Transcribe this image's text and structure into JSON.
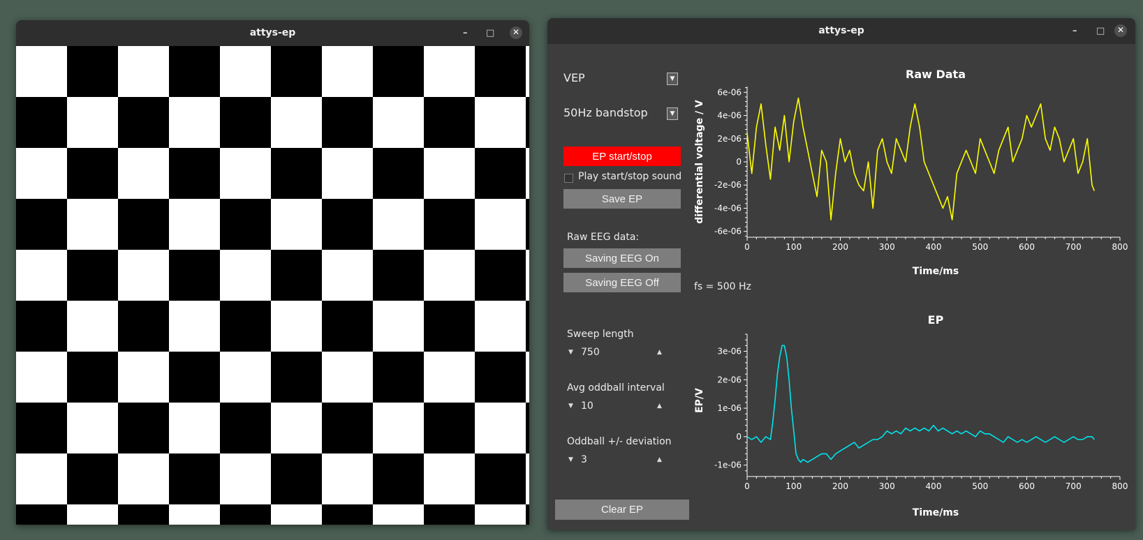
{
  "left_window": {
    "title": "attys-ep",
    "controls": {
      "minimize": "–",
      "maximize": "□",
      "close": "✕"
    }
  },
  "right_window": {
    "title": "attys-ep",
    "controls": {
      "minimize": "–",
      "maximize": "□",
      "close": "✕"
    }
  },
  "panel": {
    "mode_select": "VEP",
    "filter_select": "50Hz bandstop",
    "ep_button": "EP start/stop",
    "play_sound_label": "Play start/stop sound",
    "play_sound_checked": false,
    "save_ep_button": "Save EP",
    "raw_eeg_label": "Raw EEG data:",
    "saving_on_button": "Saving EEG On",
    "saving_off_button": "Saving EEG Off",
    "fs_label": "fs = 500 Hz",
    "sweep_length_label": "Sweep length",
    "sweep_length_value": "750",
    "avg_oddball_label": "Avg oddball interval",
    "avg_oddball_value": "10",
    "oddball_dev_label": "Oddball +/- deviation",
    "oddball_dev_value": "3",
    "clear_ep_button": "Clear EP"
  },
  "colors": {
    "raw_trace": "#ffff00",
    "ep_trace": "#00e5ee",
    "ep_button_bg": "#ff0000",
    "button_bg": "#7d7d7d",
    "panel_bg": "#3d3d3d"
  },
  "chart_data": [
    {
      "type": "line",
      "title": "Raw Data",
      "xlabel": "Time/ms",
      "ylabel": "differential voltage / V",
      "xlim": [
        0,
        800
      ],
      "ylim": [
        -6.5e-06,
        6.5e-06
      ],
      "xticks": [
        "0",
        "100",
        "200",
        "300",
        "400",
        "500",
        "600",
        "700",
        "800"
      ],
      "yticks": [
        "6e-06",
        "4e-06",
        "2e-06",
        "0",
        "-2e-06",
        "-4e-06",
        "-6e-06"
      ],
      "ytick_values": [
        6e-06,
        4e-06,
        2e-06,
        0,
        -2e-06,
        -4e-06,
        -6e-06
      ],
      "series": [
        {
          "x": [
            0,
            10,
            20,
            30,
            40,
            50,
            60,
            70,
            80,
            90,
            100,
            110,
            120,
            130,
            140,
            150,
            160,
            170,
            180,
            190,
            200,
            210,
            220,
            230,
            240,
            250,
            260,
            270,
            280,
            290,
            300,
            310,
            320,
            330,
            340,
            350,
            360,
            370,
            380,
            390,
            400,
            410,
            420,
            430,
            440,
            450,
            460,
            470,
            480,
            490,
            500,
            510,
            520,
            530,
            540,
            550,
            560,
            570,
            580,
            590,
            600,
            610,
            620,
            630,
            640,
            650,
            660,
            670,
            680,
            690,
            700,
            710,
            720,
            730,
            740,
            745
          ],
          "y": [
            2.5e-06,
            -1e-06,
            3e-06,
            5e-06,
            1.5e-06,
            -1.5e-06,
            3e-06,
            1e-06,
            4e-06,
            0,
            3.5e-06,
            5.5e-06,
            3e-06,
            1e-06,
            -1e-06,
            -3e-06,
            1e-06,
            0,
            -5e-06,
            -1e-06,
            2e-06,
            0,
            1e-06,
            -1e-06,
            -2e-06,
            -2.5e-06,
            0,
            -4e-06,
            1e-06,
            2e-06,
            0,
            -1e-06,
            2e-06,
            1e-06,
            0,
            3e-06,
            5e-06,
            3e-06,
            0,
            -1e-06,
            -2e-06,
            -3e-06,
            -4e-06,
            -3e-06,
            -5e-06,
            -1e-06,
            0,
            1e-06,
            0,
            -1e-06,
            2e-06,
            1e-06,
            0,
            -1e-06,
            1e-06,
            2e-06,
            3e-06,
            0,
            1e-06,
            2e-06,
            4e-06,
            3e-06,
            4e-06,
            5e-06,
            2e-06,
            1e-06,
            3e-06,
            2e-06,
            0,
            1e-06,
            2e-06,
            -1e-06,
            0,
            2e-06,
            -2e-06,
            -2.5e-06
          ]
        }
      ]
    },
    {
      "type": "line",
      "title": "EP",
      "xlabel": "Time/ms",
      "ylabel": "EP/V",
      "xlim": [
        0,
        800
      ],
      "ylim": [
        -1.4e-06,
        3.6e-06
      ],
      "xticks": [
        "0",
        "100",
        "200",
        "300",
        "400",
        "500",
        "600",
        "700",
        "800"
      ],
      "yticks": [
        "3e-06",
        "2e-06",
        "1e-06",
        "0",
        "-1e-06"
      ],
      "ytick_values": [
        3e-06,
        2e-06,
        1e-06,
        0,
        -1e-06
      ],
      "series": [
        {
          "x": [
            0,
            10,
            20,
            30,
            40,
            50,
            55,
            60,
            65,
            70,
            75,
            80,
            85,
            90,
            95,
            100,
            105,
            110,
            115,
            120,
            130,
            140,
            150,
            160,
            170,
            180,
            190,
            200,
            210,
            220,
            230,
            240,
            250,
            260,
            270,
            280,
            290,
            300,
            310,
            320,
            330,
            340,
            350,
            360,
            370,
            380,
            390,
            400,
            410,
            420,
            430,
            440,
            450,
            460,
            470,
            480,
            490,
            500,
            510,
            520,
            530,
            540,
            550,
            560,
            570,
            580,
            590,
            600,
            610,
            620,
            630,
            640,
            650,
            660,
            670,
            680,
            690,
            700,
            710,
            720,
            730,
            740,
            745
          ],
          "y": [
            0,
            -1e-07,
            0,
            -2e-07,
            0,
            -1e-07,
            5e-07,
            1.3e-06,
            2.2e-06,
            2.8e-06,
            3.2e-06,
            3.2e-06,
            2.8e-06,
            2e-06,
            1e-06,
            2e-07,
            -6e-07,
            -8e-07,
            -9e-07,
            -8e-07,
            -9e-07,
            -8e-07,
            -7e-07,
            -6e-07,
            -6e-07,
            -8e-07,
            -6e-07,
            -5e-07,
            -4e-07,
            -3e-07,
            -2e-07,
            -4e-07,
            -3e-07,
            -2e-07,
            -1e-07,
            -1e-07,
            0,
            2e-07,
            1e-07,
            2e-07,
            1e-07,
            3e-07,
            2e-07,
            3e-07,
            2e-07,
            3e-07,
            2e-07,
            4e-07,
            2e-07,
            3e-07,
            2e-07,
            1e-07,
            2e-07,
            1e-07,
            2e-07,
            1e-07,
            0,
            2e-07,
            1e-07,
            1e-07,
            0,
            -1e-07,
            -2e-07,
            0,
            -1e-07,
            -2e-07,
            -1e-07,
            -2e-07,
            -1e-07,
            0,
            -1e-07,
            -2e-07,
            -1e-07,
            0,
            -1e-07,
            -2e-07,
            -1e-07,
            0,
            -1e-07,
            -1e-07,
            0,
            0,
            -1e-07
          ]
        }
      ]
    }
  ]
}
